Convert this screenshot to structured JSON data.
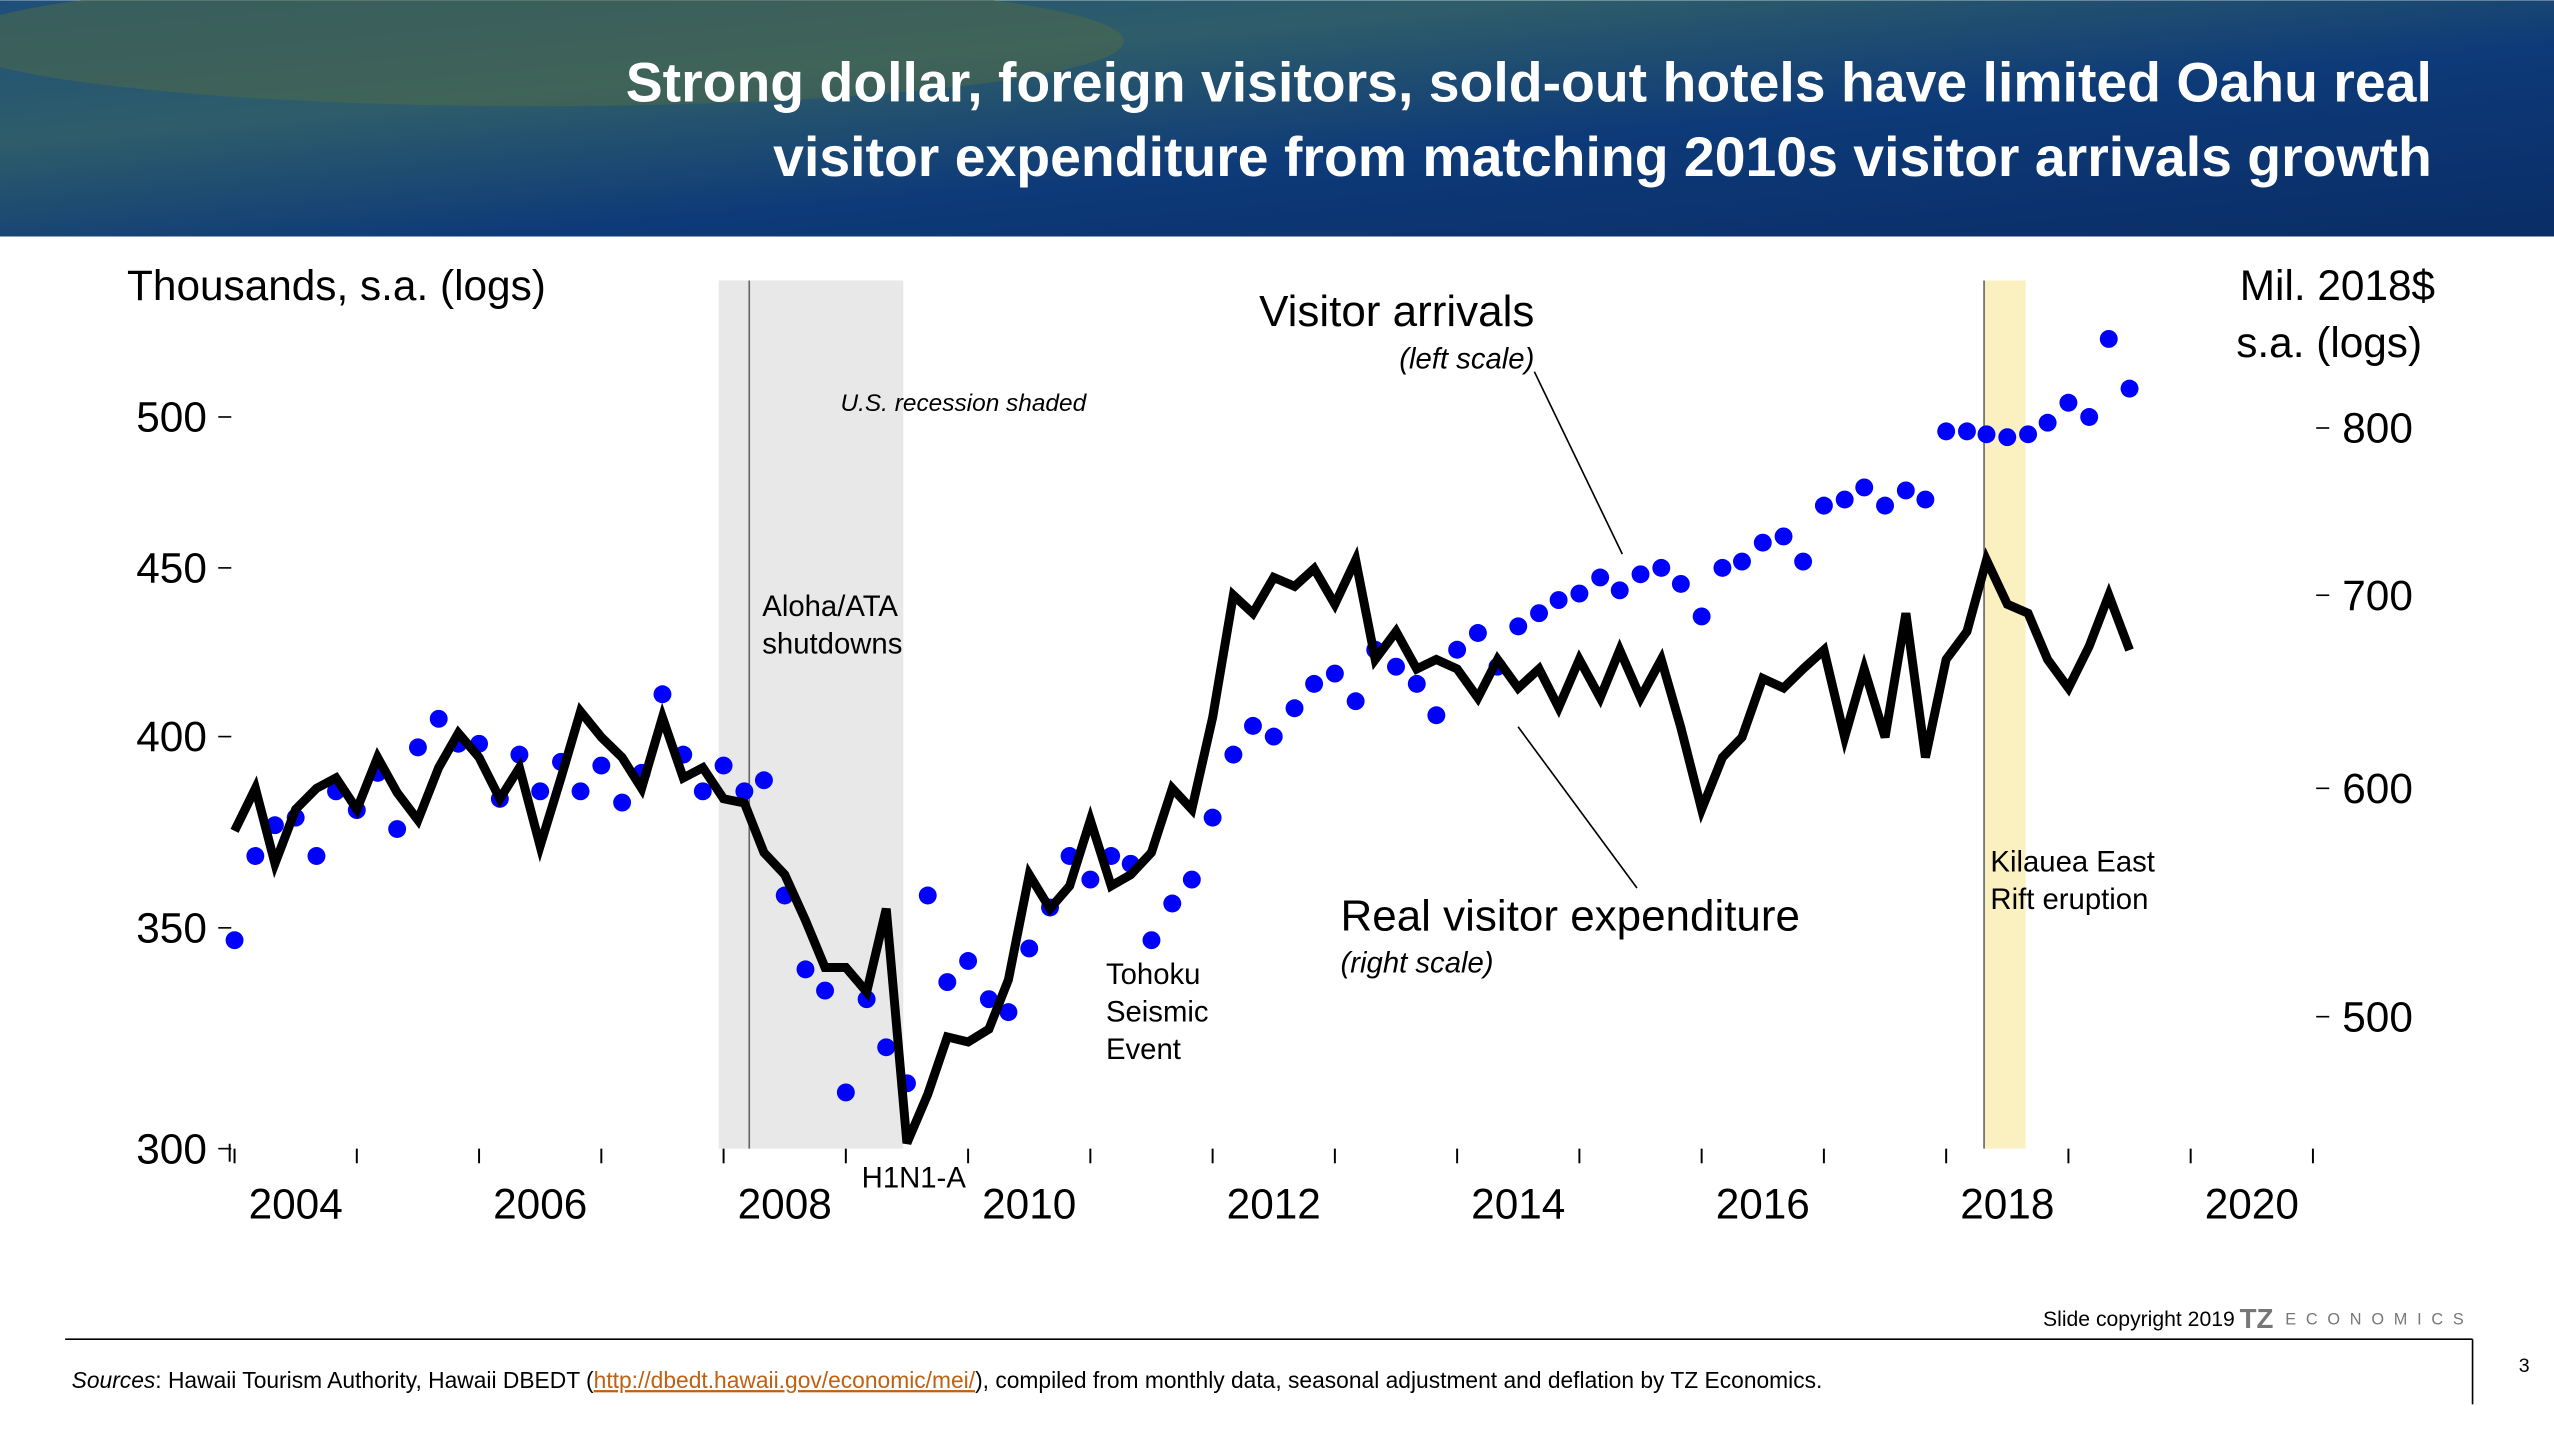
{
  "chart_data": {
    "type": "scatter-line",
    "title": [
      "Strong dollar, foreign visitors, sold-out hotels have limited Oahu real",
      "visitor expenditure from matching 2010s visitor arrivals growth"
    ],
    "y_label": "Thousands, s.a. (logs)",
    "y2_label": [
      "Mil. 2018$",
      "s.a. (logs)"
    ],
    "xlim": [
      2004,
      2021
    ],
    "xtick_marks": [
      2004,
      2005,
      2006,
      2007,
      2008,
      2009,
      2010,
      2011,
      2012,
      2013,
      2014,
      2015,
      2016,
      2017,
      2018,
      2019,
      2020,
      2021
    ],
    "xticks": [
      {
        "value": 2004.5,
        "label": "2004"
      },
      {
        "value": 2006.5,
        "label": "2006"
      },
      {
        "value": 2008.5,
        "label": "2008"
      },
      {
        "value": 2010.5,
        "label": "2010"
      },
      {
        "value": 2012.5,
        "label": "2012"
      },
      {
        "value": 2014.5,
        "label": "2014"
      },
      {
        "value": 2016.5,
        "label": "2016"
      },
      {
        "value": 2018.5,
        "label": "2018"
      },
      {
        "value": 2020.5,
        "label": "2020"
      }
    ],
    "ylim": [
      300,
      550
    ],
    "yticks": [
      300,
      350,
      400,
      450,
      500
    ],
    "y2lim": [
      450,
      900
    ],
    "y2ticks": [
      500,
      600,
      700,
      800
    ],
    "log_scale": true,
    "x": [
      2004,
      2004.17,
      2004.33,
      2004.5,
      2004.67,
      2004.83,
      2005,
      2005.17,
      2005.33,
      2005.5,
      2005.67,
      2005.83,
      2006,
      2006.17,
      2006.33,
      2006.5,
      2006.67,
      2006.83,
      2007,
      2007.17,
      2007.33,
      2007.5,
      2007.67,
      2007.83,
      2008,
      2008.17,
      2008.33,
      2008.5,
      2008.67,
      2008.83,
      2009,
      2009.17,
      2009.33,
      2009.5,
      2009.67,
      2009.83,
      2010,
      2010.17,
      2010.33,
      2010.5,
      2010.67,
      2010.83,
      2011,
      2011.17,
      2011.33,
      2011.5,
      2011.67,
      2011.83,
      2012,
      2012.17,
      2012.33,
      2012.5,
      2012.67,
      2012.83,
      2013,
      2013.17,
      2013.33,
      2013.5,
      2013.67,
      2013.83,
      2014,
      2014.17,
      2014.33,
      2014.5,
      2014.67,
      2014.83,
      2015,
      2015.17,
      2015.33,
      2015.5,
      2015.67,
      2015.83,
      2016,
      2016.17,
      2016.33,
      2016.5,
      2016.67,
      2016.83,
      2017,
      2017.17,
      2017.33,
      2017.5,
      2017.67,
      2017.83,
      2018,
      2018.17,
      2018.33,
      2018.5,
      2018.67,
      2018.83,
      2019,
      2019.17,
      2019.33,
      2019.5
    ],
    "series": [
      {
        "name": "Visitor arrivals",
        "color": "#0000ff",
        "mark": "dot",
        "axis": "y",
        "values": [
          347,
          368,
          376,
          378,
          368,
          385,
          380,
          390,
          375,
          397,
          405,
          398,
          398,
          383,
          395,
          385,
          393,
          385,
          392,
          382,
          390,
          412,
          395,
          385,
          392,
          385,
          388,
          358,
          340,
          335,
          312,
          333,
          322,
          314,
          358,
          337,
          342,
          333,
          330,
          345,
          355,
          368,
          362,
          368,
          366,
          347,
          356,
          362,
          378,
          395,
          403,
          400,
          408,
          415,
          418,
          410,
          425,
          420,
          415,
          406,
          425,
          430,
          420,
          432,
          436,
          440,
          442,
          447,
          443,
          448,
          450,
          445,
          435,
          450,
          452,
          458,
          460,
          452,
          470,
          472,
          476,
          470,
          475,
          472,
          495,
          495,
          494,
          493,
          494,
          498,
          505,
          500,
          528,
          510
        ]
      },
      {
        "name": "Real visitor expenditure",
        "color": "#000000",
        "mark": "line",
        "axis": "y2",
        "values": [
          580,
          600,
          565,
          590,
          600,
          605,
          590,
          615,
          598,
          585,
          610,
          627,
          615,
          595,
          610,
          573,
          605,
          638,
          625,
          615,
          600,
          635,
          605,
          610,
          595,
          593,
          570,
          560,
          540,
          520,
          520,
          510,
          545,
          452,
          470,
          492,
          490,
          495,
          515,
          560,
          545,
          555,
          585,
          555,
          560,
          570,
          600,
          590,
          635,
          700,
          690,
          710,
          705,
          715,
          695,
          720,
          665,
          680,
          660,
          665,
          660,
          645,
          665,
          650,
          660,
          640,
          665,
          645,
          670,
          645,
          665,
          630,
          590,
          615,
          625,
          655,
          650,
          660,
          670,
          625,
          660,
          625,
          690,
          615,
          665,
          680,
          720,
          695,
          690,
          665,
          650,
          672,
          700,
          670
        ]
      }
    ],
    "series_labels": [
      {
        "text": "Visitor arrivals",
        "sub": "(left scale)"
      },
      {
        "text": "Real visitor expenditure",
        "sub": "(right scale)"
      }
    ],
    "shaded_regions": [
      {
        "x": [
          2007.96,
          2009.47
        ],
        "color": "#e8e8e8",
        "label": "U.S. recession shaded"
      },
      {
        "x": [
          2018.31,
          2018.65
        ],
        "color": "#fbf0c0",
        "label": "Kilauea East Rift eruption"
      }
    ],
    "event_lines": [
      {
        "x": 2008.21,
        "label": [
          "Aloha/ATA",
          "shutdowns"
        ]
      },
      {
        "x": 2018.31,
        "label": [
          "Kilauea East",
          "Rift eruption"
        ]
      }
    ],
    "annotations": [
      {
        "x": 2009.5,
        "label": [
          "H1N1-A"
        ]
      },
      {
        "x": 2011.3,
        "label": [
          "Tohoku",
          "Seismic",
          "Event"
        ]
      }
    ]
  },
  "footer": {
    "copyright": "Slide copyright 2019",
    "logo": "TZ",
    "logo_sub": "ECONOMICS",
    "page": "3",
    "sources_label": "Sources",
    "sources_before": ":  Hawaii Tourism Authority, Hawaii DBEDT (",
    "sources_link": "http://dbedt.hawaii.gov/economic/mei/",
    "sources_after": "), compiled from monthly data, seasonal adjustment and deflation by TZ Economics."
  }
}
